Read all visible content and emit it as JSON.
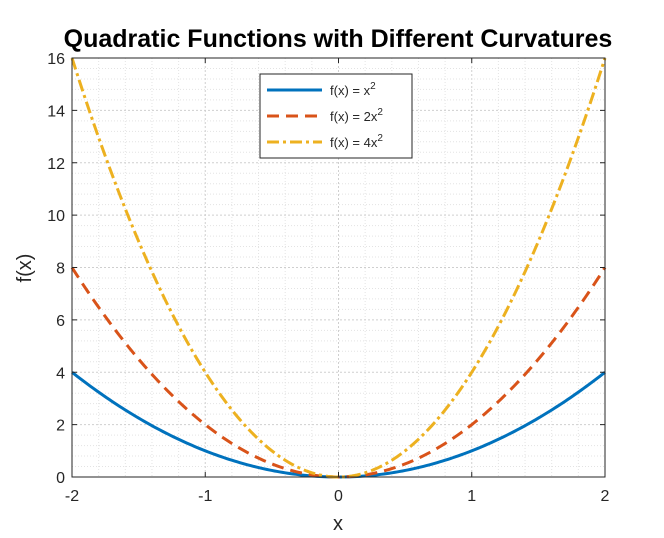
{
  "chart_data": {
    "type": "line",
    "title": "Quadratic Functions with Different Curvatures",
    "xlabel": "x",
    "ylabel": "f(x)",
    "xlim": [
      -2,
      2
    ],
    "ylim": [
      0,
      16
    ],
    "xticks": [
      -2,
      -1,
      0,
      1,
      2
    ],
    "yticks": [
      0,
      2,
      4,
      6,
      8,
      10,
      12,
      14,
      16
    ],
    "grid": "major and minor, dotted",
    "legend_position": "top-center",
    "function": "y = a * x^2",
    "x_range": [
      -2,
      2
    ],
    "series": [
      {
        "name": "f(x) = x2",
        "legend": {
          "text": "f(x)  =  x",
          "sup": "2"
        },
        "coefficient": 1,
        "color": "#0072BD",
        "line_style": "solid"
      },
      {
        "name": "f(x) = 2x2",
        "legend": {
          "text": "f(x)  =  2x",
          "sup": "2"
        },
        "coefficient": 2,
        "color": "#D95319",
        "line_style": "dashed"
      },
      {
        "name": "f(x) = 4x2",
        "legend": {
          "text": "f(x)  =  4x",
          "sup": "2"
        },
        "coefficient": 4,
        "color": "#EDB120",
        "line_style": "dash-dot"
      }
    ]
  }
}
